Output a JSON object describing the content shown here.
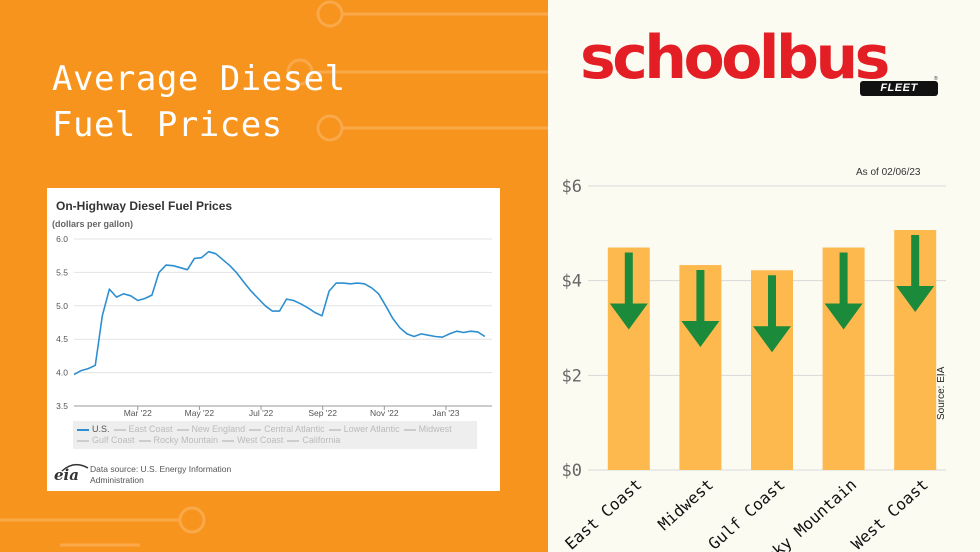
{
  "headline": "Average Diesel\nFuel Prices",
  "eia_chart": {
    "title": "On-Highway Diesel Fuel Prices",
    "subtitle": "(dollars per gallon)",
    "legend": [
      "U.S.",
      "East Coast",
      "New England",
      "Central Atlantic",
      "Lower Atlantic",
      "Midwest",
      "Gulf Coast",
      "Rocky Mountain",
      "West Coast",
      "California"
    ],
    "logo_text": "eia",
    "source": "Data source: U.S. Energy Information Administration"
  },
  "brand": {
    "name": "schoolbus",
    "sub": "FLEET",
    "reg": "®"
  },
  "bar_chart": {
    "as_of": "As of 02/06/23",
    "source": "Source: EIA"
  },
  "colors": {
    "left_bg": "#F7941D",
    "right_bg": "#FCFBF2",
    "bar": "#FDB94E",
    "arrow": "#1B8A3A",
    "line": "#2E8FD0",
    "brand_red": "#E31E25"
  },
  "chart_data": [
    {
      "type": "line",
      "title": "On-Highway Diesel Fuel Prices",
      "ylabel": "(dollars per gallon)",
      "ylim": [
        3.5,
        6.0
      ],
      "yticks": [
        3.5,
        4.0,
        4.5,
        5.0,
        5.5,
        6.0
      ],
      "xtick_labels": [
        "Mar '22",
        "May '22",
        "Jul '22",
        "Sep '22",
        "Nov '22",
        "Jan '23"
      ],
      "xtick_positions": [
        9,
        17.7,
        26.4,
        35.1,
        43.8,
        52.5
      ],
      "xlim": [
        0,
        59
      ],
      "grid": true,
      "series": [
        {
          "name": "U.S.",
          "x": [
            0,
            1,
            2,
            3,
            4,
            5,
            6,
            7,
            8,
            9,
            10,
            11,
            12,
            13,
            14,
            15,
            16,
            17,
            18,
            19,
            20,
            21,
            22,
            23,
            24,
            25,
            26,
            27,
            28,
            29,
            30,
            31,
            32,
            33,
            34,
            35,
            36,
            37,
            38,
            39,
            40,
            41,
            42,
            43,
            44,
            45,
            46,
            47,
            48,
            49,
            50,
            51,
            52,
            53,
            54,
            55,
            56,
            57,
            58
          ],
          "values": [
            3.97,
            4.03,
            4.06,
            4.11,
            4.85,
            5.25,
            5.13,
            5.18,
            5.15,
            5.08,
            5.11,
            5.16,
            5.5,
            5.61,
            5.6,
            5.57,
            5.54,
            5.71,
            5.72,
            5.81,
            5.78,
            5.69,
            5.6,
            5.49,
            5.35,
            5.22,
            5.11,
            5.0,
            4.92,
            4.92,
            5.1,
            5.08,
            5.03,
            4.97,
            4.9,
            4.85,
            5.22,
            5.34,
            5.34,
            5.33,
            5.34,
            5.33,
            5.27,
            5.18,
            5.0,
            4.81,
            4.67,
            4.58,
            4.54,
            4.58,
            4.56,
            4.54,
            4.53,
            4.58,
            4.62,
            4.6,
            4.62,
            4.61,
            4.54
          ]
        }
      ]
    },
    {
      "type": "bar",
      "categories": [
        "East Coast",
        "Midwest",
        "Gulf Coast",
        "Rocky Mountain",
        "West Coast"
      ],
      "values": [
        4.7,
        4.33,
        4.22,
        4.7,
        5.07
      ],
      "ylim": [
        0,
        6
      ],
      "yticks": [
        0,
        2,
        4,
        6
      ],
      "ytick_labels": [
        "$0",
        "$2",
        "$4",
        "$6"
      ],
      "grid": true
    }
  ]
}
